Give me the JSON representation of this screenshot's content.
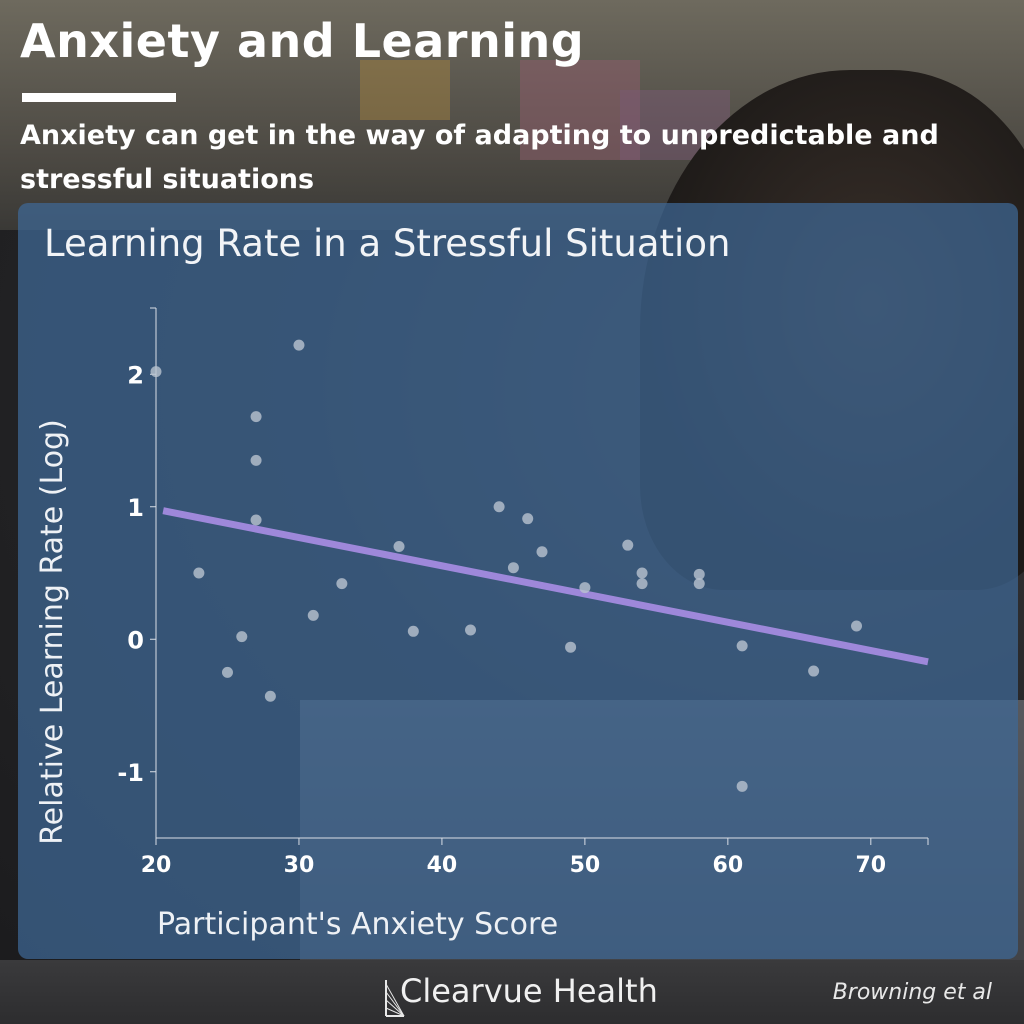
{
  "header": {
    "title": "Anxiety and Learning",
    "subtitle": "Anxiety can get in the way of adapting to unpredictable and stressful situations"
  },
  "chart_data": {
    "type": "scatter",
    "title": "Learning Rate in a Stressful Situation",
    "xlabel": "Participant's Anxiety Score",
    "ylabel": "Relative Learning Rate (Log)",
    "xlim": [
      20,
      74
    ],
    "ylim": [
      -1.5,
      2.5
    ],
    "x_ticks": [
      20,
      30,
      40,
      50,
      60,
      70
    ],
    "y_ticks": [
      -1,
      0,
      1,
      2
    ],
    "grid": false,
    "point_color": "#b9c3cf",
    "trend_color": "#a48be0",
    "points": [
      {
        "x": 20,
        "y": 2.02
      },
      {
        "x": 23,
        "y": 0.5
      },
      {
        "x": 25,
        "y": -0.25
      },
      {
        "x": 26,
        "y": 0.02
      },
      {
        "x": 27,
        "y": 1.68
      },
      {
        "x": 27,
        "y": 1.35
      },
      {
        "x": 27,
        "y": 0.9
      },
      {
        "x": 28,
        "y": -0.43
      },
      {
        "x": 30,
        "y": 2.22
      },
      {
        "x": 31,
        "y": 0.18
      },
      {
        "x": 33,
        "y": 0.42
      },
      {
        "x": 37,
        "y": 0.7
      },
      {
        "x": 38,
        "y": 0.06
      },
      {
        "x": 42,
        "y": 0.07
      },
      {
        "x": 44,
        "y": 1.0
      },
      {
        "x": 45,
        "y": 0.54
      },
      {
        "x": 46,
        "y": 0.91
      },
      {
        "x": 47,
        "y": 0.66
      },
      {
        "x": 49,
        "y": -0.06
      },
      {
        "x": 50,
        "y": 0.39
      },
      {
        "x": 53,
        "y": 0.71
      },
      {
        "x": 54,
        "y": 0.5
      },
      {
        "x": 54,
        "y": 0.42
      },
      {
        "x": 58,
        "y": 0.49
      },
      {
        "x": 58,
        "y": 0.42
      },
      {
        "x": 61,
        "y": -0.05
      },
      {
        "x": 61,
        "y": -1.11
      },
      {
        "x": 66,
        "y": -0.24
      },
      {
        "x": 69,
        "y": 0.1
      }
    ],
    "trend_line": {
      "x": [
        20.5,
        74
      ],
      "y": [
        0.97,
        -0.17
      ]
    }
  },
  "footer": {
    "brand": "Clearvue Health",
    "citation": "Browning et al"
  }
}
